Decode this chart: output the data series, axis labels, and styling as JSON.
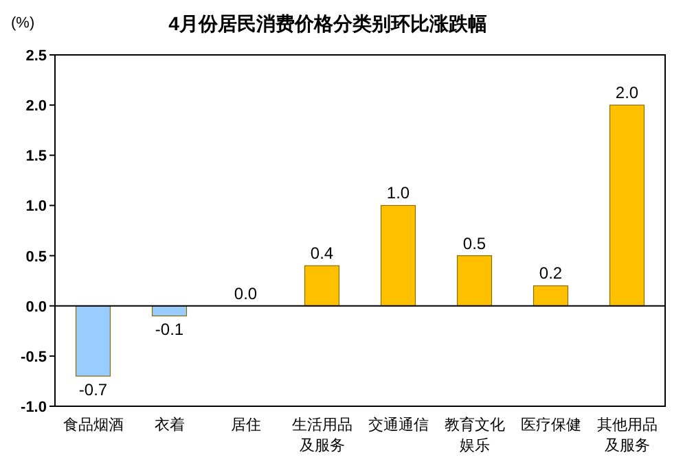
{
  "chart_data": {
    "type": "bar",
    "title": "4月份居民消费价格分类别环比涨跌幅",
    "ylabel": "(%)",
    "categories": [
      "食品烟酒",
      "衣着",
      "居住",
      "生活用品及服务",
      "交通通信",
      "教育文化娱乐",
      "医疗保健",
      "其他用品及服务"
    ],
    "values": [
      -0.7,
      -0.1,
      0.0,
      0.4,
      1.0,
      0.5,
      0.2,
      2.0
    ],
    "colors": [
      "#99ccff",
      "#99ccff",
      "#ffc000",
      "#ffc000",
      "#ffc000",
      "#ffc000",
      "#ffc000",
      "#ffc000"
    ],
    "value_labels": [
      "-0.7",
      "-0.1",
      "0.0",
      "0.4",
      "1.0",
      "0.5",
      "0.2",
      "2.0"
    ],
    "ylim": [
      -1.0,
      2.5
    ],
    "yticks": [
      {
        "value": 2.5,
        "label": "2.5"
      },
      {
        "value": 2.0,
        "label": "2.0"
      },
      {
        "value": 1.5,
        "label": "1.5"
      },
      {
        "value": 1.0,
        "label": "1.0"
      },
      {
        "value": 0.5,
        "label": "0.5"
      },
      {
        "value": 0.0,
        "label": "0.0"
      },
      {
        "value": -0.5,
        "label": "-0.5"
      },
      {
        "value": -1.0,
        "label": "-1.0"
      }
    ]
  }
}
